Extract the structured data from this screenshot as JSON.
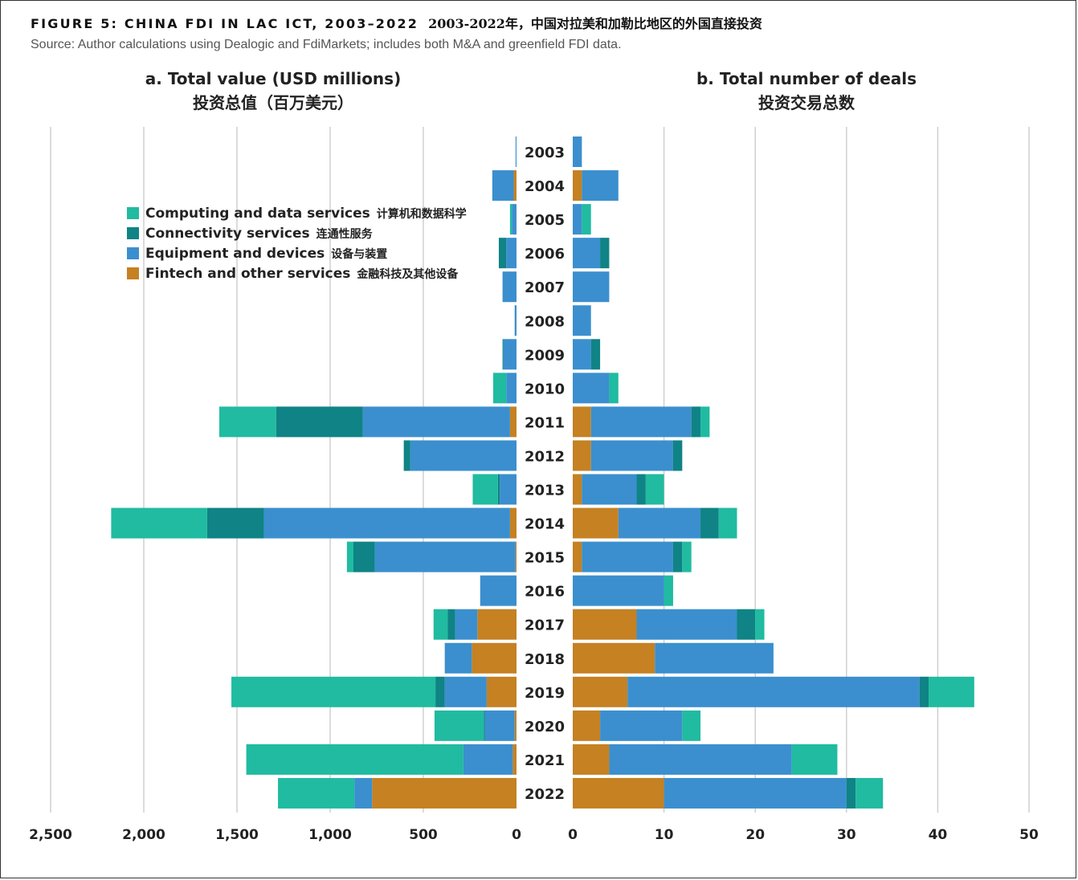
{
  "title": {
    "en": "FIGURE 5: CHINA FDI IN LAC ICT, 2003–2022",
    "zh": "2003-2022年，中国对拉美和加勒比地区的外国直接投资"
  },
  "source": "Source: Author calculations using Dealogic and FdiMarkets; includes both M&A and greenfield FDI data.",
  "panels": {
    "a": {
      "title": "a. Total value (USD millions)",
      "title_zh": "投资总值（百万美元）"
    },
    "b": {
      "title": "b. Total number of deals",
      "title_zh": "投资交易总数"
    }
  },
  "legend": [
    {
      "label": "Computing and data services",
      "label_zh": "计算机和数据科学",
      "color": "#20bba0"
    },
    {
      "label": "Connectivity services",
      "label_zh": "连通性服务",
      "color": "#0f8385"
    },
    {
      "label": "Equipment and devices",
      "label_zh": "设备与装置",
      "color": "#3b8fce"
    },
    {
      "label": "Fintech and other services",
      "label_zh": "金融科技及其他设备",
      "color": "#c58122"
    }
  ],
  "chart_data": [
    {
      "type": "bar",
      "orientation": "horizontal",
      "stacked": true,
      "direction": "leftward",
      "title": "a. Total value (USD millions)",
      "categories": [
        "2003",
        "2004",
        "2005",
        "2006",
        "2007",
        "2008",
        "2009",
        "2010",
        "2011",
        "2012",
        "2013",
        "2014",
        "2015",
        "2016",
        "2017",
        "2018",
        "2019",
        "2020",
        "2021",
        "2022"
      ],
      "xlim": [
        0,
        2500
      ],
      "ticks": [
        0,
        500,
        1000,
        1500,
        2000,
        2500
      ],
      "tick_labels": [
        "0",
        "500",
        "1,000",
        "1,500",
        "2,000",
        "2,500"
      ],
      "grid": true,
      "series": [
        {
          "name": "Fintech and other services",
          "values": [
            0,
            15,
            0,
            0,
            0,
            0,
            0,
            0,
            35,
            0,
            0,
            35,
            5,
            0,
            210,
            240,
            160,
            10,
            20,
            775
          ]
        },
        {
          "name": "Equipment and devices",
          "values": [
            5,
            115,
            25,
            55,
            75,
            10,
            70,
            55,
            790,
            570,
            90,
            1320,
            755,
            195,
            120,
            145,
            225,
            160,
            265,
            95
          ]
        },
        {
          "name": "Connectivity services",
          "values": [
            0,
            0,
            0,
            40,
            0,
            0,
            5,
            0,
            465,
            35,
            10,
            305,
            115,
            0,
            40,
            0,
            50,
            5,
            0,
            0
          ]
        },
        {
          "name": "Computing and data services",
          "values": [
            0,
            0,
            10,
            0,
            0,
            0,
            0,
            70,
            305,
            0,
            135,
            515,
            35,
            0,
            75,
            0,
            1095,
            265,
            1165,
            410
          ]
        }
      ]
    },
    {
      "type": "bar",
      "orientation": "horizontal",
      "stacked": true,
      "direction": "rightward",
      "title": "b. Total number of deals",
      "categories": [
        "2003",
        "2004",
        "2005",
        "2006",
        "2007",
        "2008",
        "2009",
        "2010",
        "2011",
        "2012",
        "2013",
        "2014",
        "2015",
        "2016",
        "2017",
        "2018",
        "2019",
        "2020",
        "2021",
        "2022"
      ],
      "xlim": [
        0,
        50
      ],
      "ticks": [
        0,
        10,
        20,
        30,
        40,
        50
      ],
      "tick_labels": [
        "0",
        "10",
        "20",
        "30",
        "40",
        "50"
      ],
      "grid": true,
      "series": [
        {
          "name": "Fintech and other services",
          "values": [
            0,
            1,
            0,
            0,
            0,
            0,
            0,
            0,
            2,
            2,
            1,
            5,
            1,
            0,
            7,
            9,
            6,
            3,
            4,
            10
          ]
        },
        {
          "name": "Equipment and devices",
          "values": [
            1,
            4,
            1,
            3,
            4,
            2,
            2,
            4,
            11,
            9,
            6,
            9,
            10,
            10,
            11,
            13,
            32,
            9,
            20,
            20
          ]
        },
        {
          "name": "Connectivity services",
          "values": [
            0,
            0,
            0,
            1,
            0,
            0,
            1,
            0,
            1,
            1,
            1,
            2,
            1,
            0,
            2,
            0,
            1,
            0,
            0,
            1
          ]
        },
        {
          "name": "Computing and data services",
          "values": [
            0,
            0,
            1,
            0,
            0,
            0,
            0,
            1,
            1,
            0,
            2,
            2,
            1,
            1,
            1,
            0,
            5,
            2,
            5,
            3
          ]
        }
      ]
    }
  ]
}
